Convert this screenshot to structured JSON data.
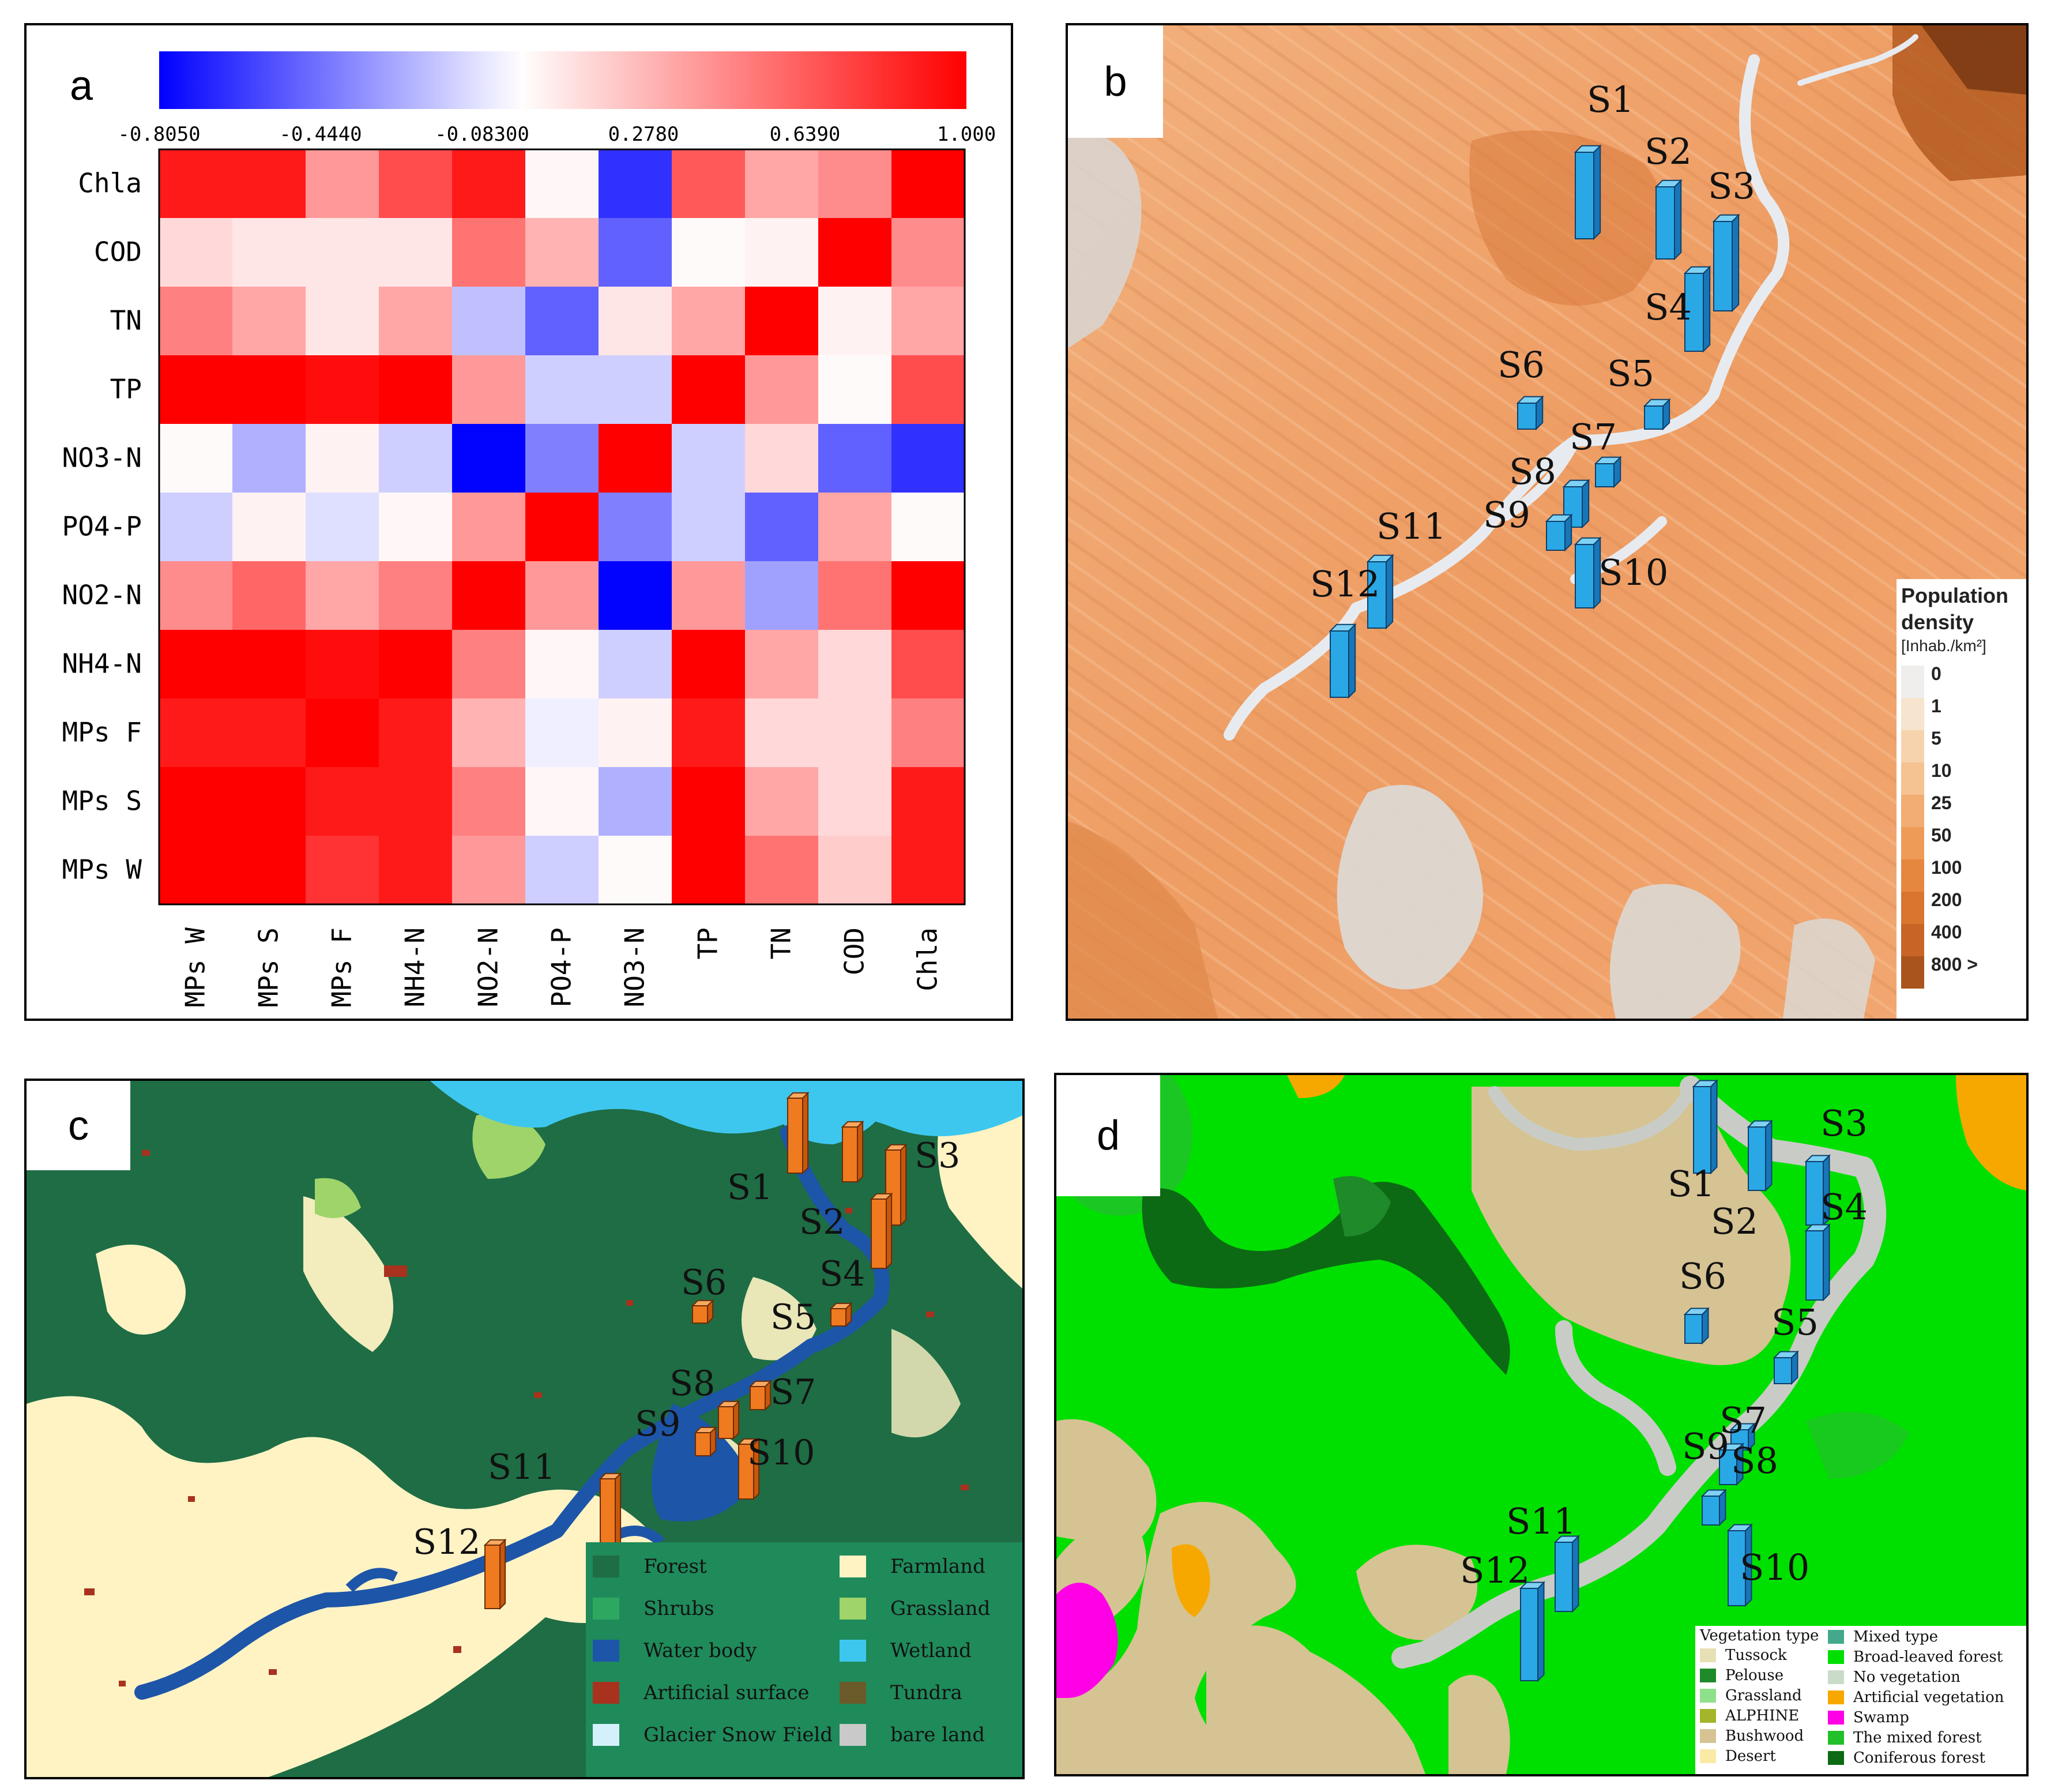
{
  "panel_a": {
    "letter": "a",
    "colorbar_ticks": [
      "-0.8050",
      "-0.4440",
      "-0.08300",
      "0.2780",
      "0.6390",
      "1.000"
    ],
    "colorbar_range": [
      -0.805,
      1.0
    ],
    "colors": {
      "neg": "#0000ff",
      "mid": "#ffffff",
      "pos": "#ff0000"
    }
  },
  "chart_data": [
    {
      "type": "heatmap",
      "rows": [
        "Chla",
        "COD",
        "TN",
        "TP",
        "NO3-N",
        "PO4-P",
        "NO2-N",
        "NH4-N",
        "MPs F",
        "MPs S",
        "MPs W"
      ],
      "columns": [
        "MPs W",
        "MPs S",
        "MPs F",
        "NH4-N",
        "NO2-N",
        "PO4-P",
        "NO3-N",
        "TP",
        "TN",
        "COD",
        "Chla"
      ],
      "values": [
        [
          0.9,
          0.9,
          0.4,
          0.7,
          0.9,
          0.03,
          -0.65,
          0.65,
          0.35,
          0.45,
          1.0
        ],
        [
          0.15,
          0.1,
          0.1,
          0.1,
          0.55,
          0.3,
          -0.5,
          0.02,
          0.05,
          1.0,
          0.45
        ],
        [
          0.5,
          0.35,
          0.1,
          0.35,
          -0.2,
          -0.5,
          0.1,
          0.35,
          1.0,
          0.05,
          0.35
        ],
        [
          1.0,
          1.0,
          0.95,
          1.0,
          0.4,
          -0.15,
          -0.15,
          1.0,
          0.4,
          0.02,
          0.7
        ],
        [
          0.02,
          -0.25,
          0.05,
          -0.15,
          -0.8,
          -0.4,
          1.0,
          -0.15,
          0.15,
          -0.5,
          -0.65
        ],
        [
          -0.15,
          0.05,
          -0.1,
          0.03,
          0.4,
          1.0,
          -0.4,
          -0.15,
          -0.5,
          0.35,
          0.02
        ],
        [
          0.45,
          0.6,
          0.35,
          0.5,
          1.0,
          0.4,
          -0.8,
          0.4,
          -0.3,
          0.55,
          1.0
        ],
        [
          1.0,
          1.0,
          0.95,
          1.0,
          0.5,
          0.03,
          -0.15,
          1.0,
          0.35,
          0.15,
          0.7
        ],
        [
          0.9,
          0.9,
          1.0,
          0.9,
          0.3,
          -0.05,
          0.05,
          0.9,
          0.15,
          0.15,
          0.5
        ],
        [
          1.0,
          1.0,
          0.9,
          0.9,
          0.5,
          0.03,
          -0.25,
          1.0,
          0.35,
          0.15,
          0.9
        ],
        [
          1.0,
          1.0,
          0.8,
          0.9,
          0.4,
          -0.15,
          0.02,
          1.0,
          0.55,
          0.2,
          0.9
        ]
      ],
      "range": [
        -0.805,
        1.0
      ]
    }
  ],
  "panel_b": {
    "letter": "b",
    "legend_title_line1": "Population",
    "legend_title_line2": "density",
    "legend_unit": "[Inhab./km²]",
    "legend_values": [
      "0",
      "1",
      "5",
      "10",
      "25",
      "50",
      "100",
      "200",
      "400",
      "800 >"
    ],
    "legend_colors": [
      "#efeeed",
      "#f6e4cf",
      "#f7d3ad",
      "#f5c291",
      "#f2ad72",
      "#ee9b58",
      "#e6873f",
      "#da7530",
      "#c86425",
      "#a9541d"
    ]
  },
  "panel_c": {
    "letter": "c",
    "legend": [
      {
        "label": "Forest",
        "color": "#1e6d45"
      },
      {
        "label": "Farmland",
        "color": "#fff3c4"
      },
      {
        "label": "Shrubs",
        "color": "#2ea861"
      },
      {
        "label": "Grassland",
        "color": "#9fd46a"
      },
      {
        "label": "Water body",
        "color": "#1d55a8"
      },
      {
        "label": "Wetland",
        "color": "#3ec7ee"
      },
      {
        "label": "Artificial surface",
        "color": "#a8321e"
      },
      {
        "label": "Tundra",
        "color": "#6b5a2a"
      },
      {
        "label": "Glacier Snow Field",
        "color": "#d4f0fb"
      },
      {
        "label": "bare land",
        "color": "#c9c9c9"
      }
    ]
  },
  "panel_d": {
    "letter": "d",
    "legend_title": "Vegetation type",
    "legend_left": [
      {
        "label": "Tussock",
        "color": "#e6e0b4"
      },
      {
        "label": "Pelouse",
        "color": "#1f8a2a"
      },
      {
        "label": "Grassland",
        "color": "#8fe08a"
      },
      {
        "label": "ALPHINE",
        "color": "#a4b52a"
      },
      {
        "label": "Bushwood",
        "color": "#d6c393"
      },
      {
        "label": "Desert",
        "color": "#fbe9a6"
      }
    ],
    "legend_right": [
      {
        "label": "Mixed type",
        "color": "#44a98c"
      },
      {
        "label": "Broad-leaved  forest",
        "color": "#00e000"
      },
      {
        "label": "No vegetation",
        "color": "#c9dcc9"
      },
      {
        "label": "Artificial vegetation",
        "color": "#f7a800"
      },
      {
        "label": "Swamp",
        "color": "#ff00e6"
      },
      {
        "label": "The mixed forest",
        "color": "#22c02a"
      },
      {
        "label": "Coniferous forest",
        "color": "#0c6a14"
      }
    ]
  },
  "sites": [
    "S1",
    "S2",
    "S3",
    "S4",
    "S5",
    "S6",
    "S7",
    "S8",
    "S9",
    "S10",
    "S11",
    "S12"
  ]
}
